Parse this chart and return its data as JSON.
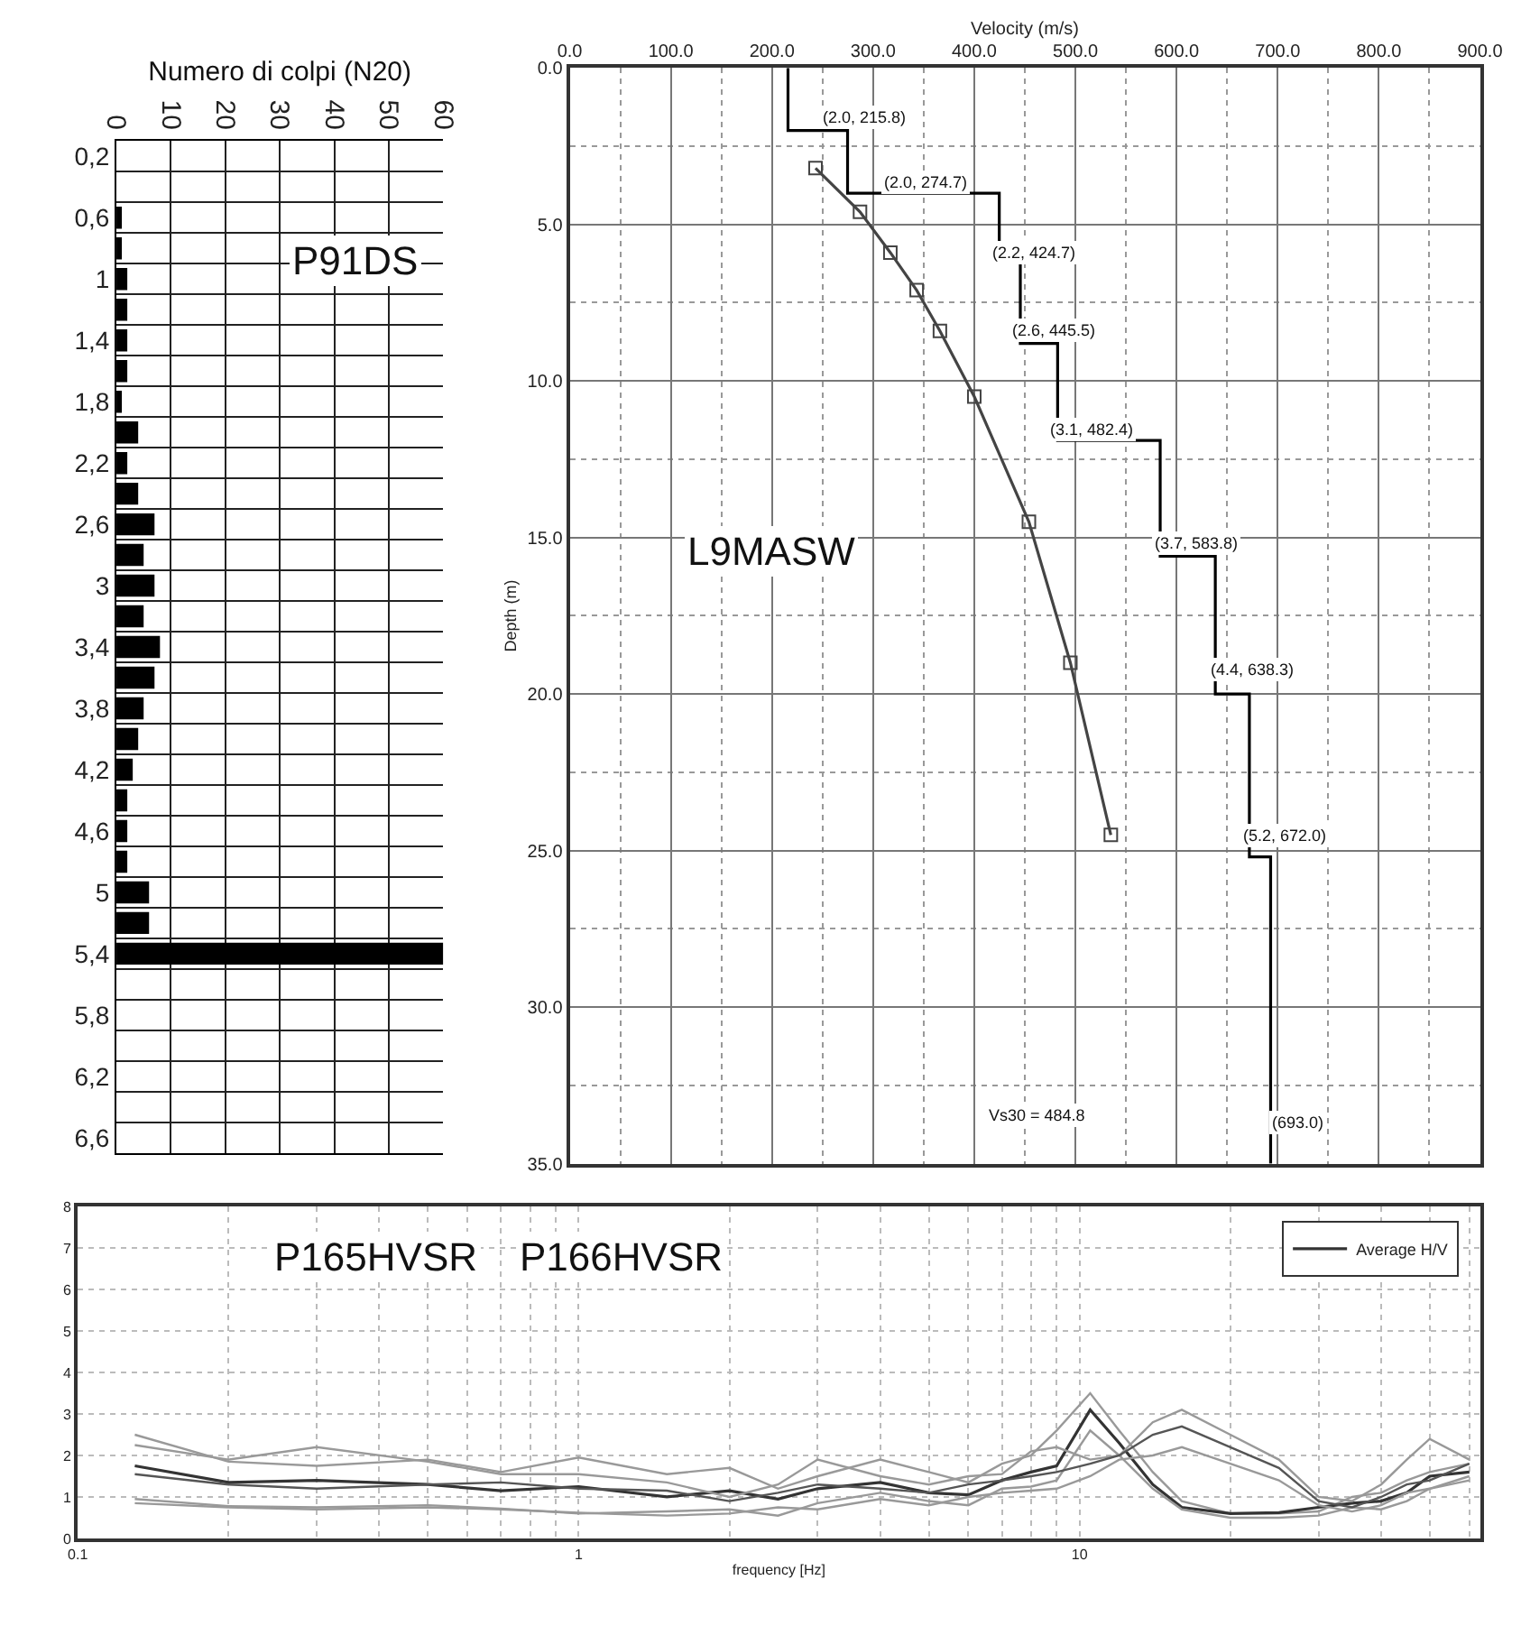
{
  "chart_data": [
    {
      "type": "bar",
      "orientation": "horizontal",
      "xlabel": "Numero di colpi (N20)",
      "categories": [
        "0,2",
        null,
        "0,6",
        null,
        "1",
        null,
        "1,4",
        null,
        "1,8",
        null,
        "2,2",
        null,
        "2,6",
        null,
        "3",
        null,
        "3,4",
        null,
        "3,8",
        null,
        "4,2",
        null,
        "4,6",
        null,
        "5",
        null,
        "5,4",
        null,
        "5,8",
        null,
        "6,2",
        null,
        "6,6"
      ],
      "values": [
        0,
        0,
        1,
        1,
        2,
        2,
        2,
        2,
        1,
        4,
        2,
        4,
        7,
        5,
        7,
        5,
        8,
        7,
        5,
        4,
        3,
        2,
        2,
        2,
        6,
        6,
        60,
        0,
        0,
        0,
        0,
        0,
        0
      ],
      "color": "#000000",
      "xlim": [
        0,
        60
      ],
      "xticks": [
        0,
        10,
        20,
        30,
        40,
        50,
        60
      ],
      "grid": true,
      "annotations": [
        "P91DS"
      ]
    },
    {
      "type": "line",
      "xlabel": "Velocity (m/s)",
      "ylabel": "Depth (m)",
      "xlim": [
        0,
        900
      ],
      "ylim": [
        35,
        0
      ],
      "xticks": [
        {
          "value": 0,
          "label": "0.0"
        },
        {
          "value": 100,
          "label": "100.0"
        },
        {
          "value": 200,
          "label": "200.0"
        },
        {
          "value": 300,
          "label": "300.0"
        },
        {
          "value": 400,
          "label": "400.0"
        },
        {
          "value": 500,
          "label": "500.0"
        },
        {
          "value": 600,
          "label": "600.0"
        },
        {
          "value": 700,
          "label": "700.0"
        },
        {
          "value": 800,
          "label": "800.0"
        },
        {
          "value": 900,
          "label": "900.0"
        }
      ],
      "yticks": [
        {
          "value": 0,
          "label": "0.0"
        },
        {
          "value": 5,
          "label": "5.0"
        },
        {
          "value": 10,
          "label": "10.0"
        },
        {
          "value": 15,
          "label": "15.0"
        },
        {
          "value": 20,
          "label": "20.0"
        },
        {
          "value": 25,
          "label": "25.0"
        },
        {
          "value": 30,
          "label": "30.0"
        },
        {
          "value": 35,
          "label": "35.0"
        }
      ],
      "grid": true,
      "line_style": "solid",
      "series": [
        {
          "color": "#000000",
          "marker": "none",
          "x": [
            215.8,
            215.8,
            274.7,
            274.7,
            424.7,
            424.7,
            445.5,
            445.5,
            482.4,
            482.4,
            583.8,
            583.8,
            638.3,
            638.3,
            672.0,
            672.0,
            693.0,
            693.0
          ],
          "values": [
            0,
            2,
            2,
            4,
            4,
            6.2,
            6.2,
            8.8,
            8.8,
            11.9,
            11.9,
            15.6,
            15.6,
            20,
            20,
            25.2,
            25.2,
            35
          ]
        },
        {
          "color": "#444444",
          "marker": "square",
          "x": [
            243,
            287,
            317,
            343,
            366,
            400,
            454,
            495,
            535
          ],
          "values": [
            3.2,
            4.6,
            5.9,
            7.1,
            8.4,
            10.5,
            14.5,
            19.0,
            24.5
          ]
        }
      ],
      "annotations": [
        "(2.0, 215.8)",
        "(2.0, 274.7)",
        "(2.2, 424.7)",
        "(2.6, 445.5)",
        "(3.1, 482.4)",
        "(3.7, 583.8)",
        "(4.4, 638.3)",
        "(5.2, 672.0)",
        "(693.0)",
        "Vs30 = 484.8",
        "L9MASW"
      ]
    },
    {
      "type": "line",
      "xlabel": "frequency [Hz]",
      "log": "x",
      "xlim": [
        0.1,
        63
      ],
      "ylim": [
        0,
        8
      ],
      "xticks": [
        0.1,
        1,
        10
      ],
      "yticks": [
        0,
        1,
        2,
        3,
        4,
        5,
        6,
        7,
        8
      ],
      "grid": true,
      "legend": "top right",
      "x": [
        0.13,
        0.2,
        0.3,
        0.5,
        0.7,
        1.0,
        1.5,
        2.0,
        2.5,
        3.0,
        4,
        5,
        6,
        7,
        8,
        9,
        10.5,
        12,
        14,
        16,
        20,
        25,
        30,
        35,
        40,
        45,
        50,
        60
      ],
      "series": [
        {
          "color": "#999999",
          "values": [
            2.5,
            1.85,
            1.75,
            1.9,
            1.6,
            1.95,
            1.55,
            1.7,
            1.2,
            1.5,
            1.9,
            1.6,
            1.35,
            1.8,
            2.0,
            2.6,
            3.5,
            2.6,
            1.6,
            0.9,
            0.6,
            0.6,
            0.65,
            1.0,
            1.1,
            1.4,
            1.6,
            1.8
          ]
        },
        {
          "name": "Average H/V",
          "color": "#333333",
          "values": [
            1.75,
            1.35,
            1.4,
            1.3,
            1.15,
            1.25,
            1.0,
            1.15,
            0.95,
            1.2,
            1.35,
            1.1,
            1.05,
            1.4,
            1.6,
            1.75,
            3.1,
            2.3,
            1.3,
            0.75,
            0.6,
            0.62,
            0.75,
            0.85,
            0.9,
            1.1,
            1.5,
            1.6
          ]
        },
        {
          "color": "#999999",
          "values": [
            0.95,
            0.78,
            0.75,
            0.8,
            0.72,
            0.6,
            0.65,
            0.7,
            0.55,
            0.85,
            1.1,
            0.9,
            0.8,
            1.2,
            1.25,
            1.4,
            2.6,
            2.0,
            1.2,
            0.7,
            0.5,
            0.5,
            0.55,
            0.75,
            0.7,
            0.9,
            1.2,
            1.4
          ]
        },
        {
          "color": "#999999",
          "values": [
            2.25,
            1.9,
            2.2,
            1.85,
            1.55,
            1.55,
            1.35,
            1.0,
            1.3,
            1.9,
            1.5,
            1.3,
            1.5,
            1.55,
            2.1,
            2.2,
            1.9,
            2.0,
            2.8,
            3.1,
            2.5,
            1.9,
            1.0,
            0.9,
            1.3,
            1.9,
            2.4,
            1.9
          ]
        },
        {
          "color": "#555555",
          "values": [
            1.55,
            1.3,
            1.2,
            1.3,
            1.35,
            1.2,
            1.15,
            0.9,
            1.1,
            1.3,
            1.2,
            1.1,
            1.3,
            1.4,
            1.5,
            1.6,
            1.8,
            2.0,
            2.5,
            2.7,
            2.2,
            1.7,
            0.9,
            0.75,
            1.0,
            1.3,
            1.4,
            1.8
          ]
        },
        {
          "color": "#999999",
          "values": [
            0.85,
            0.75,
            0.7,
            0.75,
            0.7,
            0.62,
            0.55,
            0.6,
            0.75,
            0.7,
            0.95,
            0.8,
            1.0,
            1.1,
            1.15,
            1.2,
            1.5,
            1.9,
            2.0,
            2.2,
            1.8,
            1.4,
            0.8,
            0.65,
            0.8,
            1.1,
            1.2,
            1.5
          ]
        }
      ],
      "annotations": [
        "P165HVSR",
        "P166HVSR"
      ]
    }
  ]
}
